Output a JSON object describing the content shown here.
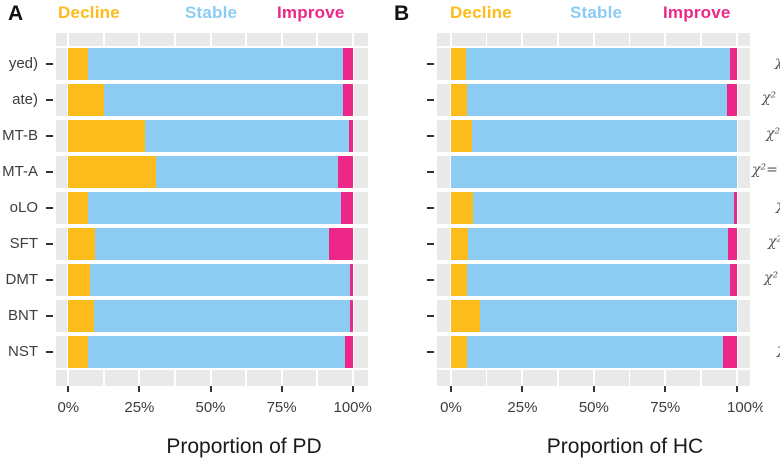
{
  "ui": {
    "panels": [
      {
        "letter": "A",
        "legend": [
          {
            "label": "Decline",
            "color": "#FBBC1C"
          },
          {
            "label": "Stable",
            "color": "#8DCCF2"
          },
          {
            "label": "Improve",
            "color": "#EC2787"
          }
        ],
        "axis_title": "Proportion of PD"
      },
      {
        "letter": "B",
        "legend": [
          {
            "label": "Decline",
            "color": "#FBBC1C"
          },
          {
            "label": "Stable",
            "color": "#8DCCF2"
          },
          {
            "label": "Improve",
            "color": "#EC2787"
          }
        ],
        "axis_title": "Proportion of HC"
      }
    ]
  },
  "colors": {
    "decline": "#FBBC1C",
    "stable": "#8DCCF2",
    "improve": "#EC2787",
    "panel_background": "#e9e9e9",
    "gridline": "#ffffff"
  },
  "chart_data": [
    {
      "type": "bar",
      "orientation": "horizontal",
      "stacked": true,
      "panel": "A",
      "xlabel": "Proportion of PD",
      "x_ticks": [
        "0%",
        "25%",
        "50%",
        "75%",
        "100%"
      ],
      "xlim": [
        0,
        100
      ],
      "grid": true,
      "legend_position": "top",
      "categories": [
        "yed)",
        "ate)",
        "MT-B",
        "MT-A",
        "oLO",
        "SFT",
        "DMT",
        "BNT",
        "NST"
      ],
      "categories_note": "y-axis labels truncated at left edge of screenshot",
      "series": [
        {
          "name": "Decline",
          "values": [
            7,
            12.5,
            27,
            31,
            7,
            9.5,
            7.5,
            9,
            7
          ]
        },
        {
          "name": "Stable",
          "values": [
            89.5,
            84,
            71.8,
            64,
            89,
            82.3,
            91.5,
            90,
            90.3
          ]
        },
        {
          "name": "Improve",
          "values": [
            3.5,
            3.5,
            1.2,
            5,
            4,
            8.2,
            1,
            1,
            2.7
          ]
        }
      ]
    },
    {
      "type": "bar",
      "orientation": "horizontal",
      "stacked": true,
      "panel": "B",
      "xlabel": "Proportion of HC",
      "x_ticks": [
        "0%",
        "25%",
        "50%",
        "75%",
        "100%"
      ],
      "xlim": [
        0,
        100
      ],
      "grid": true,
      "legend_position": "top",
      "categories": [
        "",
        "",
        "",
        "",
        "",
        "",
        "",
        "",
        ""
      ],
      "categories_note": "no y-axis labels on panel B, tick dashes only",
      "series": [
        {
          "name": "Decline",
          "values": [
            5.3,
            5.6,
            7.2,
            0,
            7.6,
            5.8,
            5.5,
            10.2,
            5.5
          ]
        },
        {
          "name": "Stable",
          "values": [
            92.4,
            90.9,
            92.8,
            100,
            91.4,
            91,
            92.3,
            89.8,
            89.8
          ]
        },
        {
          "name": "Improve",
          "values": [
            2.3,
            3.5,
            0,
            0,
            1,
            3.2,
            2.2,
            0,
            4.7
          ]
        }
      ]
    }
  ],
  "chi_fragments": [
    {
      "row": 0,
      "x": 775,
      "text": "χ"
    },
    {
      "row": 1,
      "x": 762,
      "text": "χ²"
    },
    {
      "row": 2,
      "x": 766,
      "text": "χ²"
    },
    {
      "row": 3,
      "x": 752,
      "text": "χ²="
    },
    {
      "row": 4,
      "x": 776,
      "text": "χ"
    },
    {
      "row": 5,
      "x": 768,
      "text": "χ²"
    },
    {
      "row": 6,
      "x": 764,
      "text": "χ²"
    },
    {
      "row": 8,
      "x": 777,
      "text": "χ"
    }
  ],
  "chi_fragments_note": "chi-square statistic annotations truncated at right edge of screenshot"
}
